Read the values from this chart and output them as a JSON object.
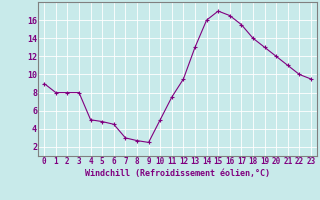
{
  "hours": [
    0,
    1,
    2,
    3,
    4,
    5,
    6,
    7,
    8,
    9,
    10,
    11,
    12,
    13,
    14,
    15,
    16,
    17,
    18,
    19,
    20,
    21,
    22,
    23
  ],
  "values": [
    9.0,
    8.0,
    8.0,
    8.0,
    5.0,
    4.8,
    4.5,
    3.0,
    2.7,
    2.5,
    5.0,
    7.5,
    9.5,
    13.0,
    16.0,
    17.0,
    16.5,
    15.5,
    14.0,
    13.0,
    12.0,
    11.0,
    10.0,
    9.5
  ],
  "xlabel": "Windchill (Refroidissement éolien,°C)",
  "ylim": [
    1,
    18
  ],
  "xlim": [
    -0.5,
    23.5
  ],
  "yticks": [
    2,
    4,
    6,
    8,
    10,
    12,
    14,
    16
  ],
  "xticks": [
    0,
    1,
    2,
    3,
    4,
    5,
    6,
    7,
    8,
    9,
    10,
    11,
    12,
    13,
    14,
    15,
    16,
    17,
    18,
    19,
    20,
    21,
    22,
    23
  ],
  "line_color": "#800080",
  "bg_color": "#c8eaea",
  "grid_color": "#b0d8d8",
  "tick_color": "#800080",
  "label_color": "#800080",
  "spine_color": "#808080"
}
